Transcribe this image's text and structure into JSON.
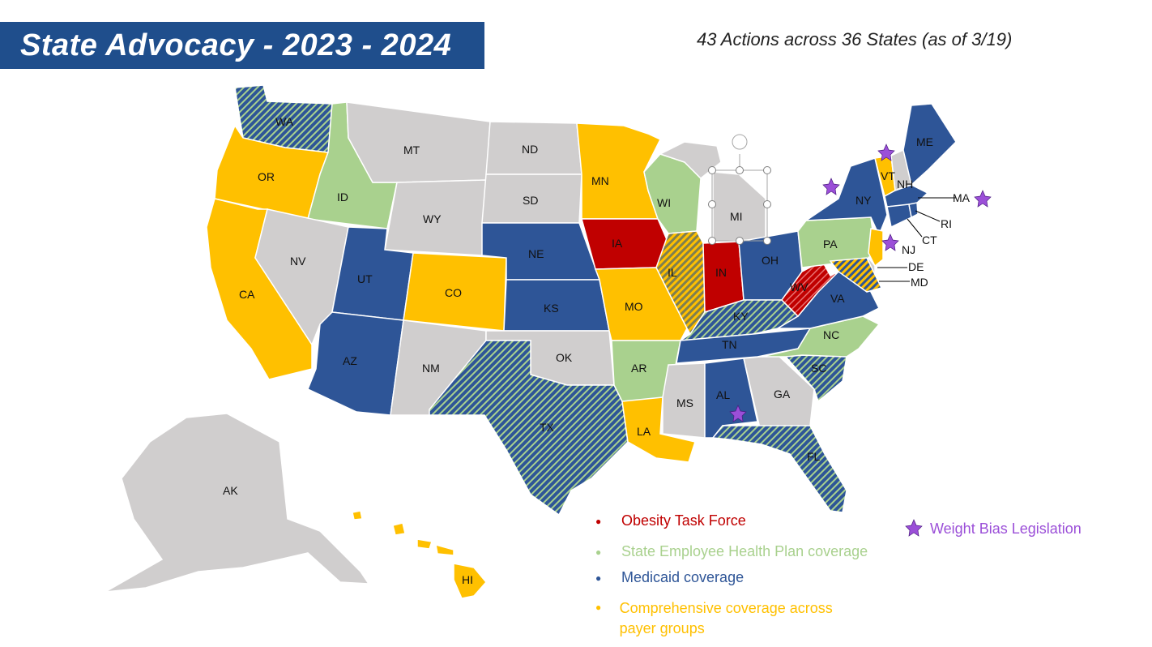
{
  "title": "State Advocacy - 2023 - 2024",
  "subtitle": "43 Actions across 36 States (as of 3/19)",
  "colors": {
    "task_force": "#c00000",
    "employee_plan": "#a9d18e",
    "medicaid": "#2e5597",
    "comprehensive": "#ffc000",
    "none": "#d0cece",
    "weight_bias": "#9b4fd8"
  },
  "legend": [
    {
      "label": "Obesity Task Force",
      "color": "#c00000"
    },
    {
      "label": "State Employee Health Plan coverage",
      "color": "#a9d18e"
    },
    {
      "label": "Medicaid coverage",
      "color": "#2e5597"
    },
    {
      "label": "Comprehensive coverage across payer groups",
      "color": "#ffc000"
    }
  ],
  "weight_bias_label": "Weight Bias Legislation",
  "states": {
    "WA": "WA",
    "OR": "OR",
    "CA": "CA",
    "ID": "ID",
    "NV": "NV",
    "MT": "MT",
    "WY": "WY",
    "UT": "UT",
    "AZ": "AZ",
    "CO": "CO",
    "NM": "NM",
    "ND": "ND",
    "SD": "SD",
    "NE": "NE",
    "KS": "KS",
    "OK": "OK",
    "TX": "TX",
    "MN": "MN",
    "IA": "IA",
    "MO": "MO",
    "AR": "AR",
    "LA": "LA",
    "WI": "WI",
    "IL": "IL",
    "MI": "MI",
    "IN": "IN",
    "OH": "OH",
    "KY": "KY",
    "TN": "TN",
    "MS": "MS",
    "AL": "AL",
    "GA": "GA",
    "FL": "FL",
    "SC": "SC",
    "NC": "NC",
    "VA": "VA",
    "WV": "WV",
    "PA": "PA",
    "NY": "NY",
    "VT": "VT",
    "NH": "NH",
    "ME": "ME",
    "MA": "MA",
    "RI": "RI",
    "CT": "CT",
    "NJ": "NJ",
    "DE": "DE",
    "MD": "MD",
    "AK": "AK",
    "HI": "HI"
  }
}
